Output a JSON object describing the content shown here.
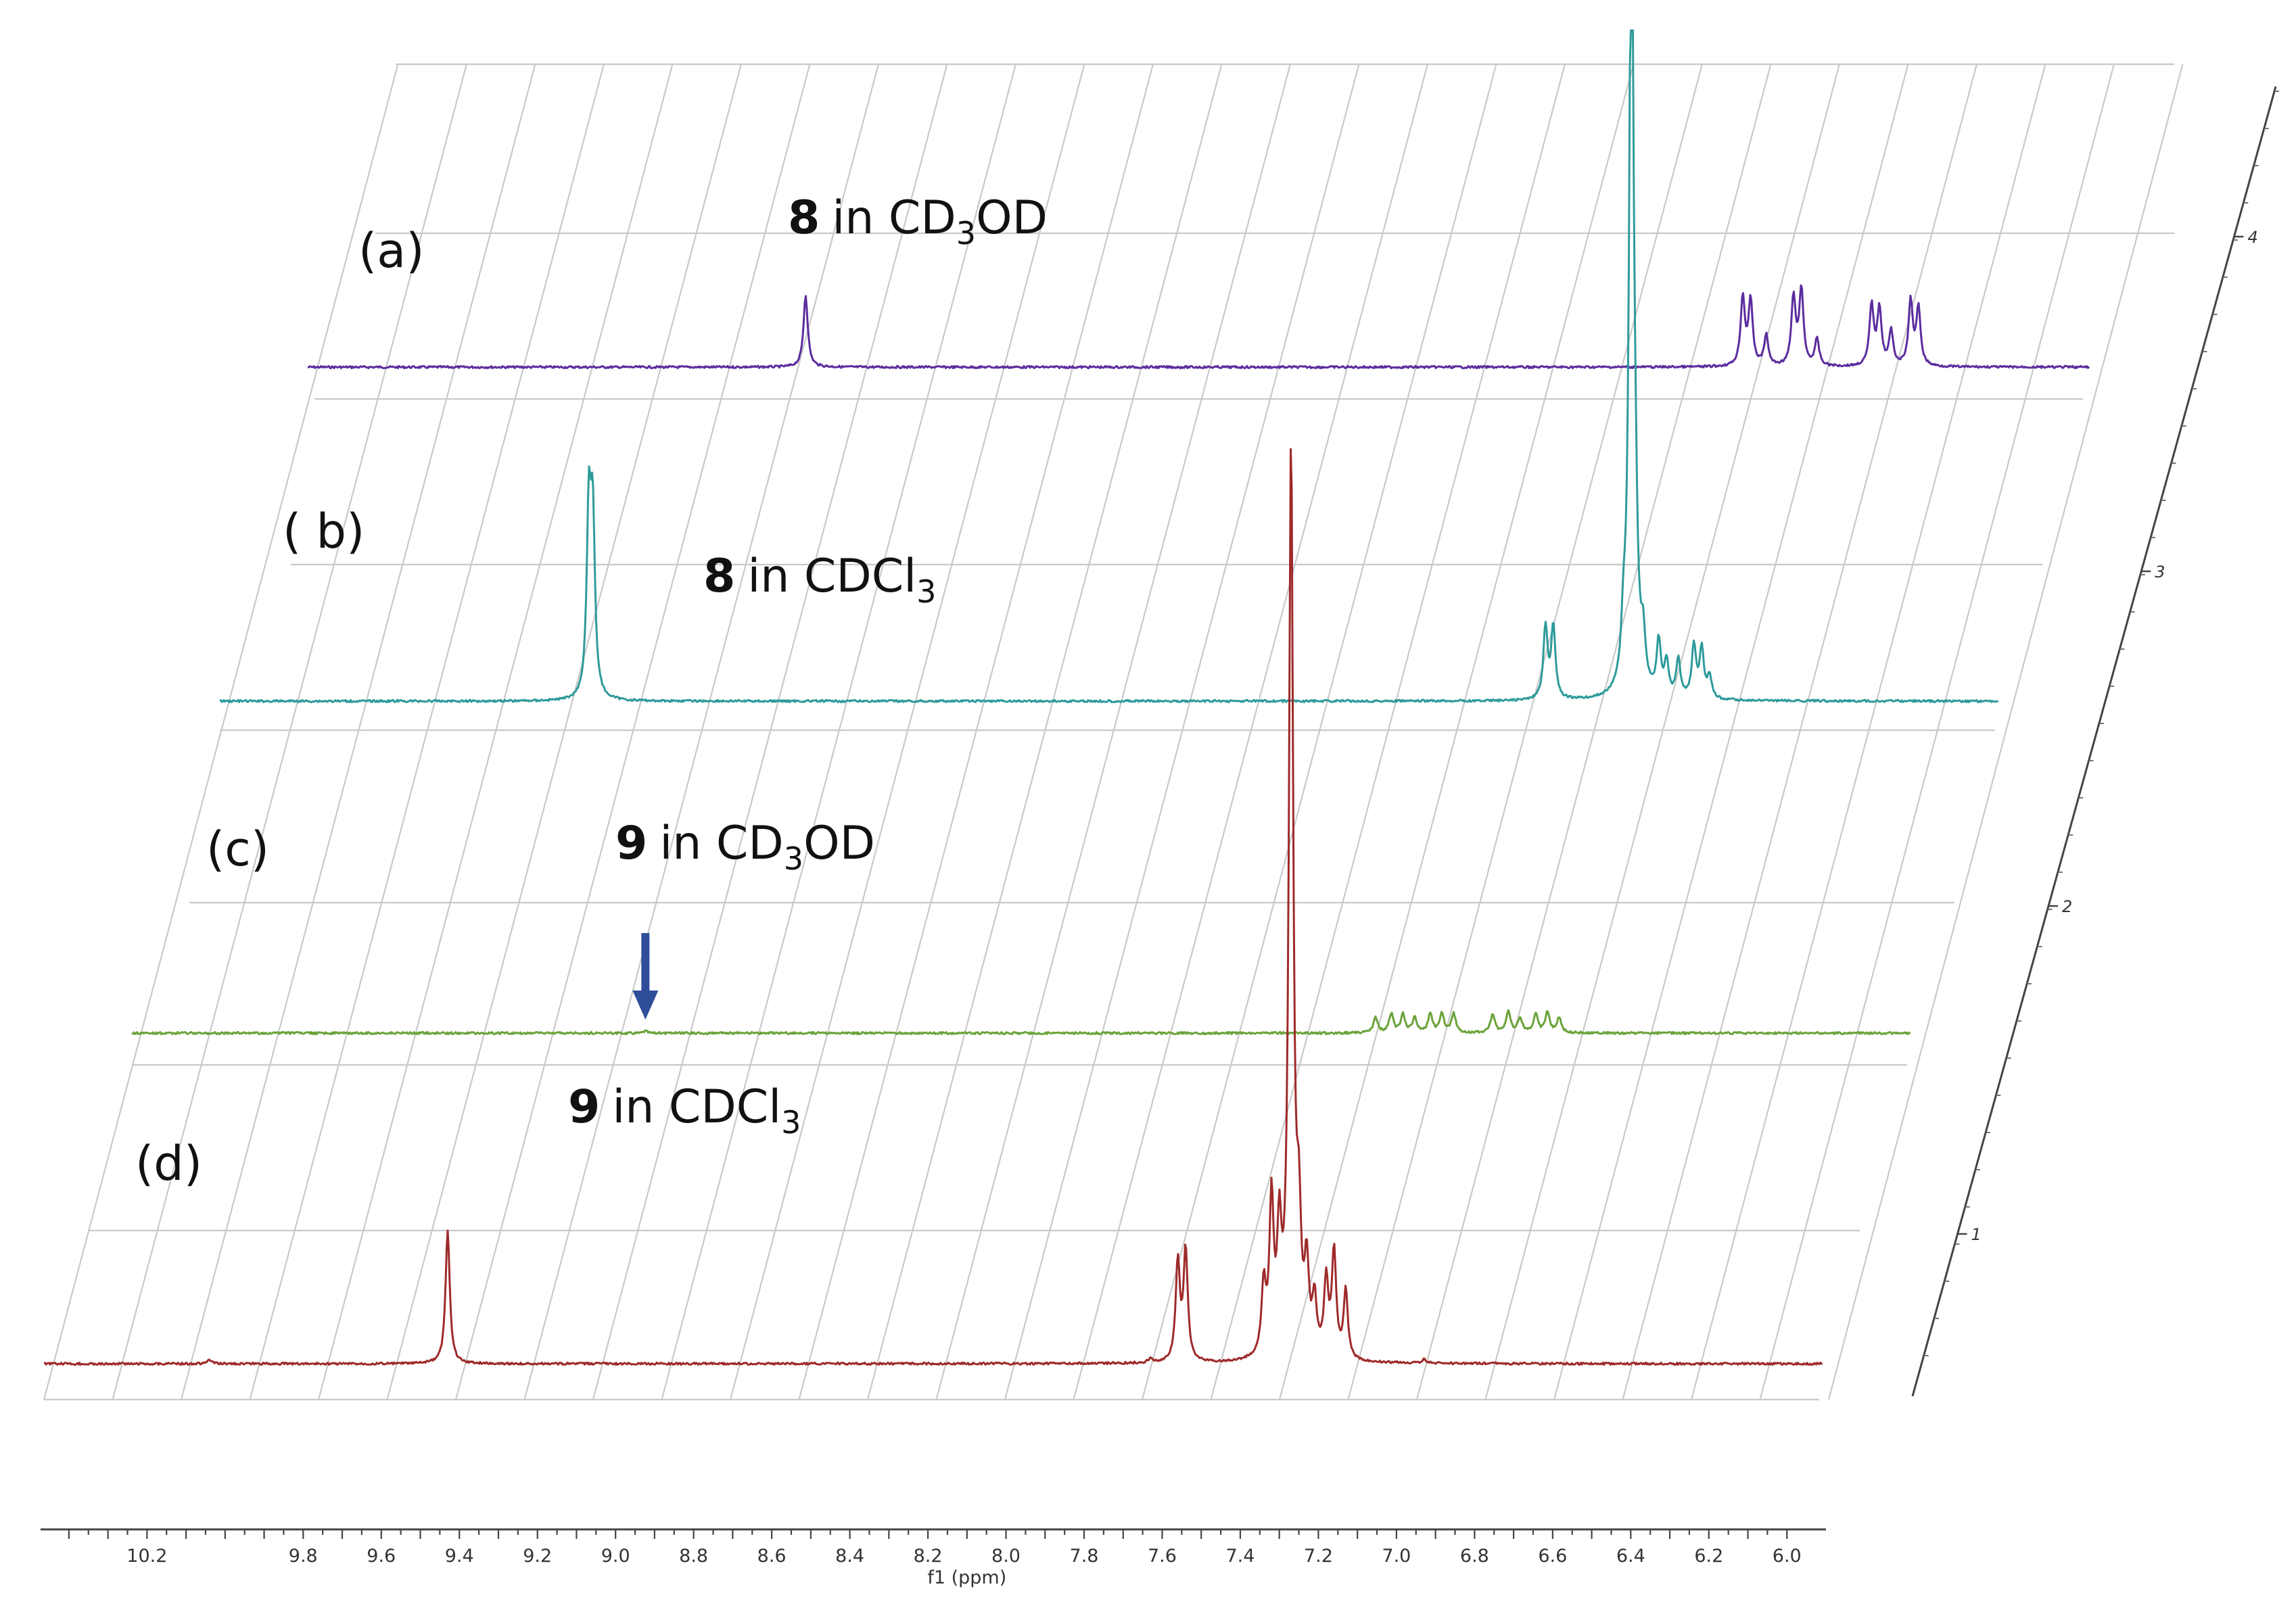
{
  "chart_data": {
    "type": "line",
    "subtype": "stacked 1H NMR spectra (pseudo-3D)",
    "x_axis": {
      "label": "f1 (ppm)",
      "range": [
        10.45,
        5.9
      ],
      "reversed": true,
      "ticks": [
        "10.2",
        "9.8",
        "9.6",
        "9.4",
        "9.2",
        "9.0",
        "8.8",
        "8.6",
        "8.4",
        "8.2",
        "8.0",
        "7.8",
        "7.6",
        "7.4",
        "7.2",
        "7.0",
        "6.8",
        "6.6",
        "6.4",
        "6.2",
        "6.0"
      ]
    },
    "depth_axis": {
      "ticks": [
        "1",
        "2",
        "3",
        "4"
      ]
    },
    "arrow_ppm": 9.14,
    "series": [
      {
        "id": "a",
        "panel_label": "(a)",
        "compound": "8",
        "solvent_prefix": "in CD",
        "solvent_sub": "3",
        "solvent_suffix": "OD",
        "color": "#5b2d9e",
        "depth": 4,
        "peaks": [
          {
            "ppm": 9.18,
            "height": 0.19
          },
          {
            "ppm": 6.78,
            "height": 0.18
          },
          {
            "ppm": 6.76,
            "height": 0.17
          },
          {
            "ppm": 6.72,
            "height": 0.08
          },
          {
            "ppm": 6.65,
            "height": 0.18
          },
          {
            "ppm": 6.63,
            "height": 0.2
          },
          {
            "ppm": 6.59,
            "height": 0.07
          },
          {
            "ppm": 6.45,
            "height": 0.16
          },
          {
            "ppm": 6.43,
            "height": 0.15
          },
          {
            "ppm": 6.4,
            "height": 0.09
          },
          {
            "ppm": 6.35,
            "height": 0.17
          },
          {
            "ppm": 6.33,
            "height": 0.15
          }
        ]
      },
      {
        "id": "b",
        "panel_label": "( b)",
        "compound": "8",
        "solvent_prefix": "in CDCl",
        "solvent_sub": "3",
        "solvent_suffix": "",
        "color": "#2e9a9a",
        "depth": 3,
        "peaks": [
          {
            "ppm": 9.51,
            "height": 0.48
          },
          {
            "ppm": 9.5,
            "height": 0.45
          },
          {
            "ppm": 7.06,
            "height": 0.19
          },
          {
            "ppm": 7.04,
            "height": 0.19
          },
          {
            "ppm": 6.86,
            "height": 0.13
          },
          {
            "ppm": 6.84,
            "height": 2.2
          },
          {
            "ppm": 6.83,
            "height": 0.25
          },
          {
            "ppm": 6.81,
            "height": 0.12
          },
          {
            "ppm": 6.77,
            "height": 0.14
          },
          {
            "ppm": 6.75,
            "height": 0.09
          },
          {
            "ppm": 6.72,
            "height": 0.1
          },
          {
            "ppm": 6.68,
            "height": 0.14
          },
          {
            "ppm": 6.66,
            "height": 0.13
          },
          {
            "ppm": 6.64,
            "height": 0.06
          }
        ]
      },
      {
        "id": "c",
        "panel_label": "(c)",
        "compound": "9",
        "solvent_prefix": "in CD",
        "solvent_sub": "3",
        "solvent_suffix": "OD",
        "color": "#6aa33a",
        "depth": 2,
        "peaks": [
          {
            "ppm": 9.14,
            "height": 0.006
          },
          {
            "ppm": 7.27,
            "height": 0.04
          },
          {
            "ppm": 7.23,
            "height": 0.05
          },
          {
            "ppm": 7.2,
            "height": 0.05
          },
          {
            "ppm": 7.17,
            "height": 0.04
          },
          {
            "ppm": 7.13,
            "height": 0.05
          },
          {
            "ppm": 7.1,
            "height": 0.05
          },
          {
            "ppm": 7.07,
            "height": 0.05
          },
          {
            "ppm": 6.97,
            "height": 0.05
          },
          {
            "ppm": 6.93,
            "height": 0.055
          },
          {
            "ppm": 6.9,
            "height": 0.04
          },
          {
            "ppm": 6.86,
            "height": 0.05
          },
          {
            "ppm": 6.83,
            "height": 0.055
          },
          {
            "ppm": 6.8,
            "height": 0.04
          }
        ]
      },
      {
        "id": "d",
        "panel_label": "(d)",
        "compound": "9",
        "solvent_prefix": "in CDCl",
        "solvent_sub": "3",
        "solvent_suffix": "",
        "color": "#9e2a2a",
        "depth": 1,
        "peaks": [
          {
            "ppm": 10.04,
            "height": 0.01
          },
          {
            "ppm": 9.43,
            "height": 0.35
          },
          {
            "ppm": 7.63,
            "height": 0.01
          },
          {
            "ppm": 7.56,
            "height": 0.26
          },
          {
            "ppm": 7.54,
            "height": 0.29
          },
          {
            "ppm": 7.34,
            "height": 0.18
          },
          {
            "ppm": 7.32,
            "height": 0.4
          },
          {
            "ppm": 7.3,
            "height": 0.3
          },
          {
            "ppm": 7.27,
            "height": 2.4
          },
          {
            "ppm": 7.25,
            "height": 0.3
          },
          {
            "ppm": 7.23,
            "height": 0.22
          },
          {
            "ppm": 7.21,
            "height": 0.14
          },
          {
            "ppm": 7.18,
            "height": 0.2
          },
          {
            "ppm": 7.16,
            "height": 0.28
          },
          {
            "ppm": 7.13,
            "height": 0.18
          },
          {
            "ppm": 6.93,
            "height": 0.01
          }
        ]
      }
    ]
  }
}
